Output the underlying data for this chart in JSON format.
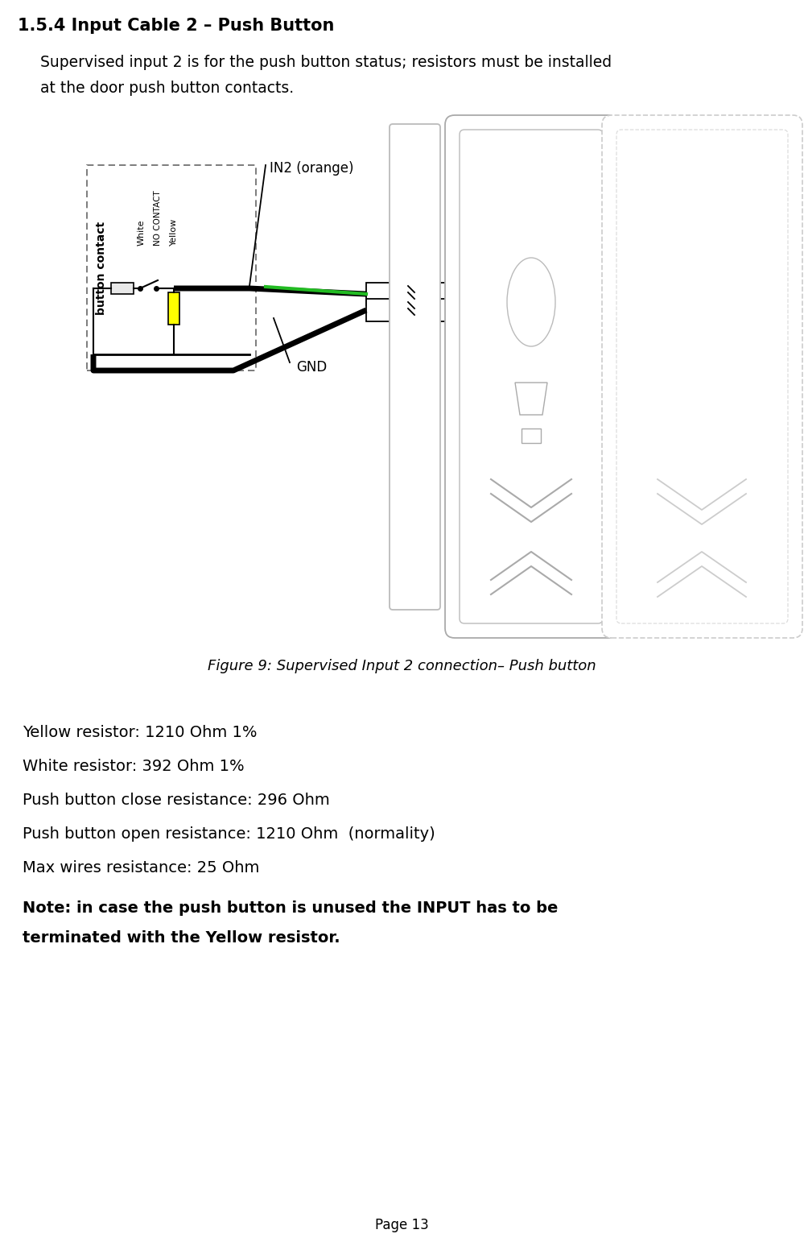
{
  "title": "1.5.4 Input Cable 2 – Push Button",
  "subtitle_line1": "Supervised input 2 is for the push button status; resistors must be installed",
  "subtitle_line2": "at the door push button contacts.",
  "figure_caption": "Figure 9: Supervised Input 2 connection– Push button",
  "bullet_lines": [
    "Yellow resistor: 1210 Ohm 1%",
    "White resistor: 392 Ohm 1%",
    "Push button close resistance: 296 Ohm",
    "Push button open resistance: 1210 Ohm  (normality)",
    "Max wires resistance: 25 Ohm"
  ],
  "note_line1": "Note: in case the push button is unused the INPUT has to be",
  "note_line2": "terminated with the Yellow resistor.",
  "page_text": "Page 13",
  "bg_color": "#ffffff",
  "text_color": "#000000",
  "dashed_color": "#666666",
  "green_color": "#22bb22",
  "yellow_color": "#ffff00",
  "gray_color": "#aaaaaa",
  "light_gray": "#cccccc",
  "resistor_white": "#e8e8e8",
  "connector_color": "#000000"
}
